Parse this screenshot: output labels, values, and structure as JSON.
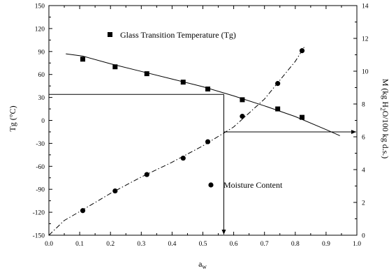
{
  "chart_data": {
    "type": "scatter",
    "x_axis": {
      "label": "a",
      "label_subscript": "w",
      "range": [
        0.0,
        1.0
      ],
      "ticks": [
        "0.0",
        "0.1",
        "0.2",
        "0.3",
        "0.4",
        "0.5",
        "0.6",
        "0.7",
        "0.8",
        "0.9",
        "1.0"
      ]
    },
    "y_left_axis": {
      "label": "Tg (°C)",
      "range": [
        -150,
        150
      ],
      "ticks": [
        "-150",
        "-120",
        "-90",
        "-60",
        "-30",
        "0",
        "30",
        "60",
        "90",
        "120",
        "150"
      ]
    },
    "y_right_axis": {
      "label_parts": [
        "M (kg H",
        "2",
        "O/100 kg d.s.)"
      ],
      "range": [
        0,
        14
      ],
      "ticks": [
        "0",
        "2",
        "4",
        "6",
        "8",
        "10",
        "12",
        "14"
      ]
    },
    "series": [
      {
        "name": "Glass Transition Temperature (Tg)",
        "axis": "left",
        "marker": "square",
        "x": [
          0.11,
          0.215,
          0.318,
          0.436,
          0.516,
          0.628,
          0.743,
          0.822
        ],
        "y": [
          80,
          70,
          61,
          50,
          41,
          27,
          15,
          4
        ],
        "fit_line": {
          "style": "solid",
          "x": [
            0.055,
            0.11,
            0.2,
            0.3,
            0.4,
            0.5,
            0.6,
            0.7,
            0.8,
            0.9,
            0.945
          ],
          "y": [
            87,
            84,
            74,
            64,
            54,
            44,
            32,
            19,
            5,
            -12,
            -20
          ]
        }
      },
      {
        "name": "Moisture Content",
        "axis": "right",
        "marker": "circle",
        "x": [
          0.11,
          0.215,
          0.318,
          0.436,
          0.516,
          0.628,
          0.743,
          0.822
        ],
        "y": [
          1.5,
          2.7,
          3.7,
          4.7,
          5.7,
          7.25,
          9.25,
          11.25
        ],
        "fit_line": {
          "style": "dash-dot",
          "x": [
            0.0,
            0.05,
            0.11,
            0.2,
            0.3,
            0.4,
            0.5,
            0.6,
            0.7,
            0.8,
            0.83
          ],
          "y": [
            0.0,
            0.9,
            1.55,
            2.55,
            3.55,
            4.45,
            5.45,
            6.6,
            8.3,
            10.6,
            11.5
          ]
        }
      }
    ],
    "annotations": {
      "tg_reference_y": 34,
      "aw_reference_x": 0.568,
      "aw_to_moisture_x": 1.0,
      "moisture_reference_y": 6.3
    },
    "legend_placement": "inside-left",
    "grid": false
  }
}
